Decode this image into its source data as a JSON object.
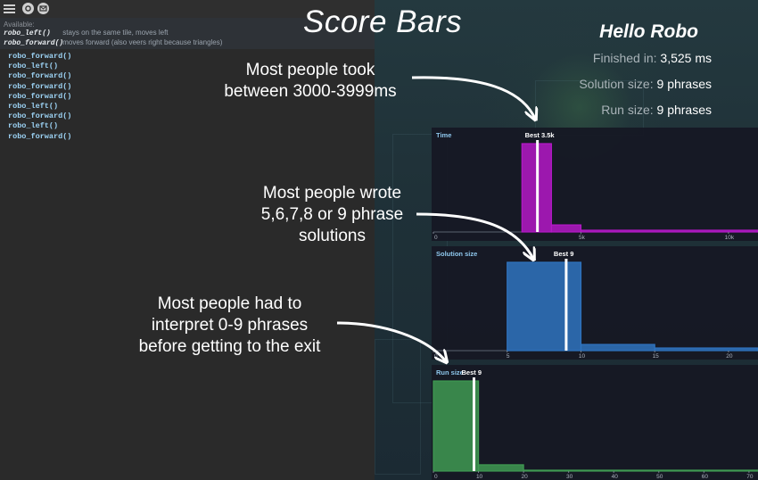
{
  "page_title": "Score Bars",
  "docs": {
    "title": "Available:",
    "items": [
      {
        "fn": "robo_left()",
        "desc": "stays on the same tile, moves left"
      },
      {
        "fn": "robo_forward()",
        "desc": "moves forward (also veers right because triangles)"
      }
    ]
  },
  "code": [
    "robo_forward()",
    "robo_left()",
    "robo_forward()",
    "robo_forward()",
    "robo_forward()",
    "robo_left()",
    "robo_forward()",
    "robo_left()",
    "robo_forward()"
  ],
  "summary": {
    "title": "Hello Robo",
    "finished_label": "Finished in:",
    "finished_value": "3,525 ms",
    "solution_label": "Solution size:",
    "solution_value": "9 phrases",
    "run_label": "Run size:",
    "run_value": "9 phrases"
  },
  "annotations": {
    "time": [
      "Most people took",
      "between 3000-3999ms"
    ],
    "solution": [
      "Most people wrote",
      "5,6,7,8 or 9 phrase",
      "solutions"
    ],
    "run": [
      "Most people had to",
      "interpret  0-9 phrases",
      "before getting to the exit"
    ]
  },
  "colors": {
    "time": "#b419c7",
    "solution": "#2f74c0",
    "run": "#3f9a52",
    "best": "#ffffff"
  },
  "chart_data": [
    {
      "type": "bar",
      "label": "Time",
      "best_label": "Best 3.5k",
      "best": 3525,
      "xlim": [
        0,
        11000
      ],
      "ticks": [
        0,
        5000,
        10000
      ],
      "tick_labels": [
        "0",
        "5k",
        "10k"
      ],
      "bins": [
        {
          "x0": 3000,
          "x1": 4000,
          "v": 1.0
        },
        {
          "x0": 4000,
          "x1": 5000,
          "v": 0.08
        },
        {
          "x0": 5000,
          "x1": 11000,
          "v": 0.02
        }
      ]
    },
    {
      "type": "bar",
      "label": "Solution size",
      "best_label": "Best 9",
      "best": 9,
      "xlim": [
        0,
        22
      ],
      "ticks": [
        0,
        5,
        10,
        15,
        20
      ],
      "tick_labels": [
        "0",
        "5",
        "10",
        "15",
        "20"
      ],
      "bins": [
        {
          "x0": 5,
          "x1": 10,
          "v": 1.0
        },
        {
          "x0": 10,
          "x1": 15,
          "v": 0.07
        },
        {
          "x0": 15,
          "x1": 22,
          "v": 0.03
        }
      ]
    },
    {
      "type": "bar",
      "label": "Run size",
      "best_label": "Best 9",
      "best": 9,
      "xlim": [
        0,
        72
      ],
      "ticks": [
        0,
        10,
        20,
        30,
        40,
        50,
        60,
        70
      ],
      "tick_labels": [
        "0",
        "10",
        "20",
        "30",
        "40",
        "50",
        "60",
        "70"
      ],
      "bins": [
        {
          "x0": 0,
          "x1": 10,
          "v": 1.0
        },
        {
          "x0": 10,
          "x1": 20,
          "v": 0.07
        },
        {
          "x0": 20,
          "x1": 72,
          "v": 0.01
        }
      ]
    }
  ]
}
